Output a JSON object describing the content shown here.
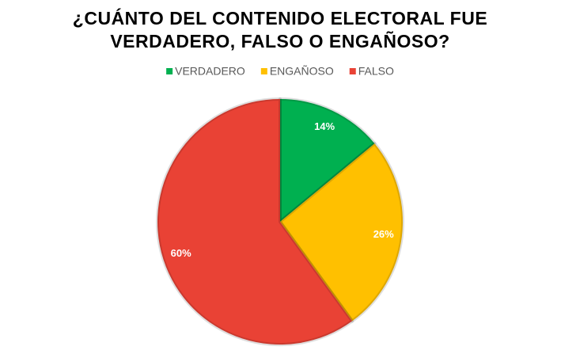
{
  "chart_data": {
    "type": "pie",
    "title": [
      "¿CUÁNTO DEL CONTENIDO ELECTORAL FUE",
      "VERDADERO, FALSO O ENGAÑOSO?"
    ],
    "categories": [
      "VERDADERO",
      "ENGAÑOSO",
      "FALSO"
    ],
    "values": [
      14,
      26,
      60
    ],
    "value_labels": [
      "14%",
      "26%",
      "60%"
    ],
    "colors": [
      "#00b050",
      "#ffc000",
      "#e94235"
    ],
    "legend": "top"
  }
}
